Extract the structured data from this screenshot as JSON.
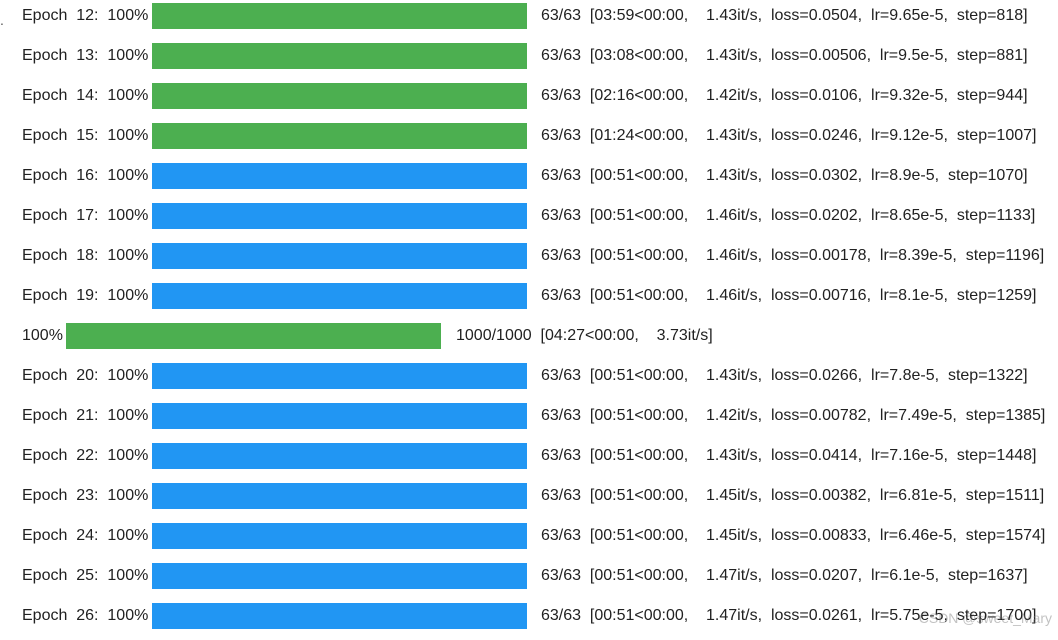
{
  "leading_mark": ".",
  "colors": {
    "green": "#4caf50",
    "blue": "#2196f3"
  },
  "rows": [
    {
      "kind": "epoch",
      "label": "Epoch  12:  100%",
      "fraction": 1.0,
      "color": "green",
      "stats": "63/63  [03:59<00:00,    1.43it/s,  loss=0.0504,  lr=9.65e-5,  step=818]"
    },
    {
      "kind": "epoch",
      "label": "Epoch  13:  100%",
      "fraction": 1.0,
      "color": "green",
      "stats": "63/63  [03:08<00:00,    1.43it/s,  loss=0.00506,  lr=9.5e-5,  step=881]"
    },
    {
      "kind": "epoch",
      "label": "Epoch  14:  100%",
      "fraction": 1.0,
      "color": "green",
      "stats": "63/63  [02:16<00:00,    1.42it/s,  loss=0.0106,  lr=9.32e-5,  step=944]"
    },
    {
      "kind": "epoch",
      "label": "Epoch  15:  100%",
      "fraction": 1.0,
      "color": "green",
      "stats": "63/63  [01:24<00:00,    1.43it/s,  loss=0.0246,  lr=9.12e-5,  step=1007]"
    },
    {
      "kind": "epoch",
      "label": "Epoch  16:  100%",
      "fraction": 1.0,
      "color": "blue",
      "stats": "63/63  [00:51<00:00,    1.43it/s,  loss=0.0302,  lr=8.9e-5,  step=1070]"
    },
    {
      "kind": "epoch",
      "label": "Epoch  17:  100%",
      "fraction": 1.0,
      "color": "blue",
      "stats": "63/63  [00:51<00:00,    1.46it/s,  loss=0.0202,  lr=8.65e-5,  step=1133]"
    },
    {
      "kind": "epoch",
      "label": "Epoch  18:  100%",
      "fraction": 1.0,
      "color": "blue",
      "stats": "63/63  [00:51<00:00,    1.46it/s,  loss=0.00178,  lr=8.39e-5,  step=1196]"
    },
    {
      "kind": "epoch",
      "label": "Epoch  19:  100%",
      "fraction": 1.0,
      "color": "blue",
      "stats": "63/63  [00:51<00:00,    1.46it/s,  loss=0.00716,  lr=8.1e-5,  step=1259]"
    },
    {
      "kind": "eval",
      "label": "100%",
      "fraction": 1.0,
      "color": "green",
      "stats": "1000/1000  [04:27<00:00,    3.73it/s]"
    },
    {
      "kind": "epoch",
      "label": "Epoch  20:  100%",
      "fraction": 1.0,
      "color": "blue",
      "stats": "63/63  [00:51<00:00,    1.43it/s,  loss=0.0266,  lr=7.8e-5,  step=1322]"
    },
    {
      "kind": "epoch",
      "label": "Epoch  21:  100%",
      "fraction": 1.0,
      "color": "blue",
      "stats": "63/63  [00:51<00:00,    1.42it/s,  loss=0.00782,  lr=7.49e-5,  step=1385]"
    },
    {
      "kind": "epoch",
      "label": "Epoch  22:  100%",
      "fraction": 1.0,
      "color": "blue",
      "stats": "63/63  [00:51<00:00,    1.43it/s,  loss=0.0414,  lr=7.16e-5,  step=1448]"
    },
    {
      "kind": "epoch",
      "label": "Epoch  23:  100%",
      "fraction": 1.0,
      "color": "blue",
      "stats": "63/63  [00:51<00:00,    1.45it/s,  loss=0.00382,  lr=6.81e-5,  step=1511]"
    },
    {
      "kind": "epoch",
      "label": "Epoch  24:  100%",
      "fraction": 1.0,
      "color": "blue",
      "stats": "63/63  [00:51<00:00,    1.45it/s,  loss=0.00833,  lr=6.46e-5,  step=1574]"
    },
    {
      "kind": "epoch",
      "label": "Epoch  25:  100%",
      "fraction": 1.0,
      "color": "blue",
      "stats": "63/63  [00:51<00:00,    1.47it/s,  loss=0.0207,  lr=6.1e-5,  step=1637]"
    },
    {
      "kind": "epoch",
      "label": "Epoch  26:  100%",
      "fraction": 1.0,
      "color": "blue",
      "stats": "63/63  [00:51<00:00,    1.47it/s,  loss=0.0261,  lr=5.75e-5,  step=1700]"
    }
  ],
  "watermark": "CSDN @sweet_Mary"
}
